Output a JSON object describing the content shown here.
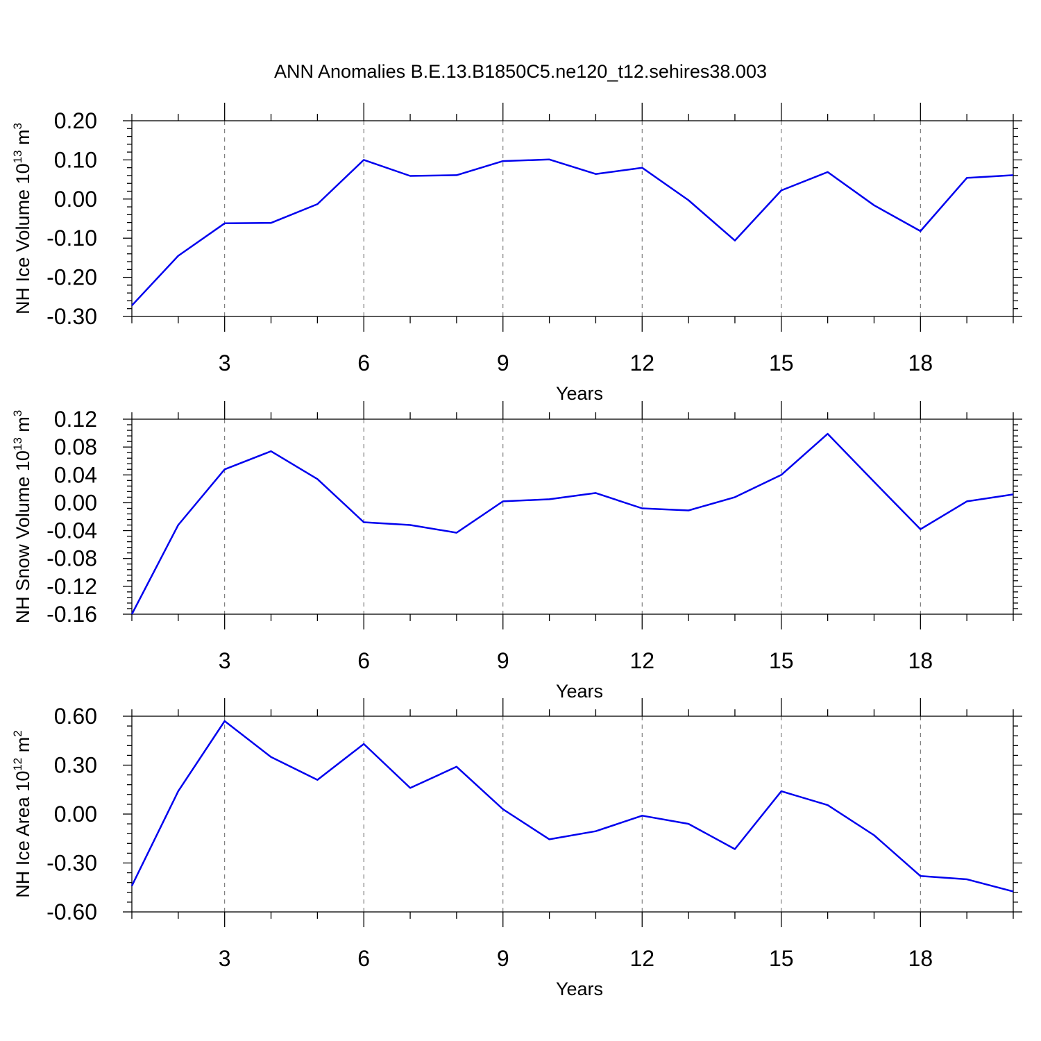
{
  "figure": {
    "title": "ANN Anomalies B.E.13.B1850C5.ne120_t12.sehires38.003"
  },
  "chart_data": [
    {
      "type": "line",
      "title": "",
      "xlabel": "Years",
      "ylabel": "NH Ice Volume 10",
      "ylabel_exp": "13",
      "ylabel_unit": " m",
      "ylabel_unit_exp": "3",
      "x": [
        1,
        2,
        3,
        4,
        5,
        6,
        7,
        8,
        9,
        10,
        11,
        12,
        13,
        14,
        15,
        16,
        17,
        18,
        19,
        20
      ],
      "values": [
        -0.272,
        -0.145,
        -0.062,
        -0.061,
        -0.013,
        0.1,
        0.059,
        0.061,
        0.097,
        0.101,
        0.064,
        0.08,
        -0.003,
        -0.106,
        0.022,
        0.069,
        -0.016,
        -0.082,
        0.054,
        0.061
      ],
      "xlim": [
        1,
        20
      ],
      "ylim": [
        -0.3,
        0.2
      ],
      "xticks": [
        3,
        6,
        9,
        12,
        15,
        18
      ],
      "xtick_labels": [
        "3",
        "6",
        "9",
        "12",
        "15",
        "18"
      ],
      "yticks": [
        -0.3,
        -0.2,
        -0.1,
        0.0,
        0.1,
        0.2
      ],
      "ytick_labels": [
        "-0.30",
        "-0.20",
        "-0.10",
        "0.00",
        "0.10",
        "0.20"
      ],
      "y_minor_step": 0.02,
      "grid": "vertical dashed at x ticks",
      "color": "#0000ee"
    },
    {
      "type": "line",
      "title": "",
      "xlabel": "Years",
      "ylabel": "NH Snow Volume 10",
      "ylabel_exp": "13",
      "ylabel_unit": " m",
      "ylabel_unit_exp": "3",
      "x": [
        1,
        2,
        3,
        4,
        5,
        6,
        7,
        8,
        9,
        10,
        11,
        12,
        13,
        14,
        15,
        16,
        17,
        18,
        19,
        20
      ],
      "values": [
        -0.16,
        -0.032,
        0.048,
        0.074,
        0.034,
        -0.028,
        -0.032,
        -0.043,
        0.002,
        0.005,
        0.014,
        -0.008,
        -0.011,
        0.008,
        0.04,
        0.099,
        0.03,
        -0.038,
        0.002,
        0.012
      ],
      "xlim": [
        1,
        20
      ],
      "ylim": [
        -0.16,
        0.12
      ],
      "xticks": [
        3,
        6,
        9,
        12,
        15,
        18
      ],
      "xtick_labels": [
        "3",
        "6",
        "9",
        "12",
        "15",
        "18"
      ],
      "yticks": [
        -0.16,
        -0.12,
        -0.08,
        -0.04,
        0.0,
        0.04,
        0.08,
        0.12
      ],
      "ytick_labels": [
        "-0.16",
        "-0.12",
        "-0.08",
        "-0.04",
        "0.00",
        "0.04",
        "0.08",
        "0.12"
      ],
      "y_minor_step": 0.008,
      "grid": "vertical dashed at x ticks",
      "color": "#0000ee"
    },
    {
      "type": "line",
      "title": "",
      "xlabel": "Years",
      "ylabel": "NH Ice Area 10",
      "ylabel_exp": "12",
      "ylabel_unit": " m",
      "ylabel_unit_exp": "2",
      "x": [
        1,
        2,
        3,
        4,
        5,
        6,
        7,
        8,
        9,
        10,
        11,
        12,
        13,
        14,
        15,
        16,
        17,
        18,
        19,
        20
      ],
      "values": [
        -0.44,
        0.14,
        0.57,
        0.35,
        0.21,
        0.43,
        0.16,
        0.29,
        0.03,
        -0.155,
        -0.105,
        -0.01,
        -0.06,
        -0.215,
        0.14,
        0.055,
        -0.13,
        -0.38,
        -0.4,
        -0.475
      ],
      "xlim": [
        1,
        20
      ],
      "ylim": [
        -0.6,
        0.6
      ],
      "xticks": [
        3,
        6,
        9,
        12,
        15,
        18
      ],
      "xtick_labels": [
        "3",
        "6",
        "9",
        "12",
        "15",
        "18"
      ],
      "yticks": [
        -0.6,
        -0.3,
        0.0,
        0.3,
        0.6
      ],
      "ytick_labels": [
        "-0.60",
        "-0.30",
        "0.00",
        "0.30",
        "0.60"
      ],
      "y_minor_step": 0.06,
      "grid": "vertical dashed at x ticks",
      "color": "#0000ee"
    }
  ]
}
